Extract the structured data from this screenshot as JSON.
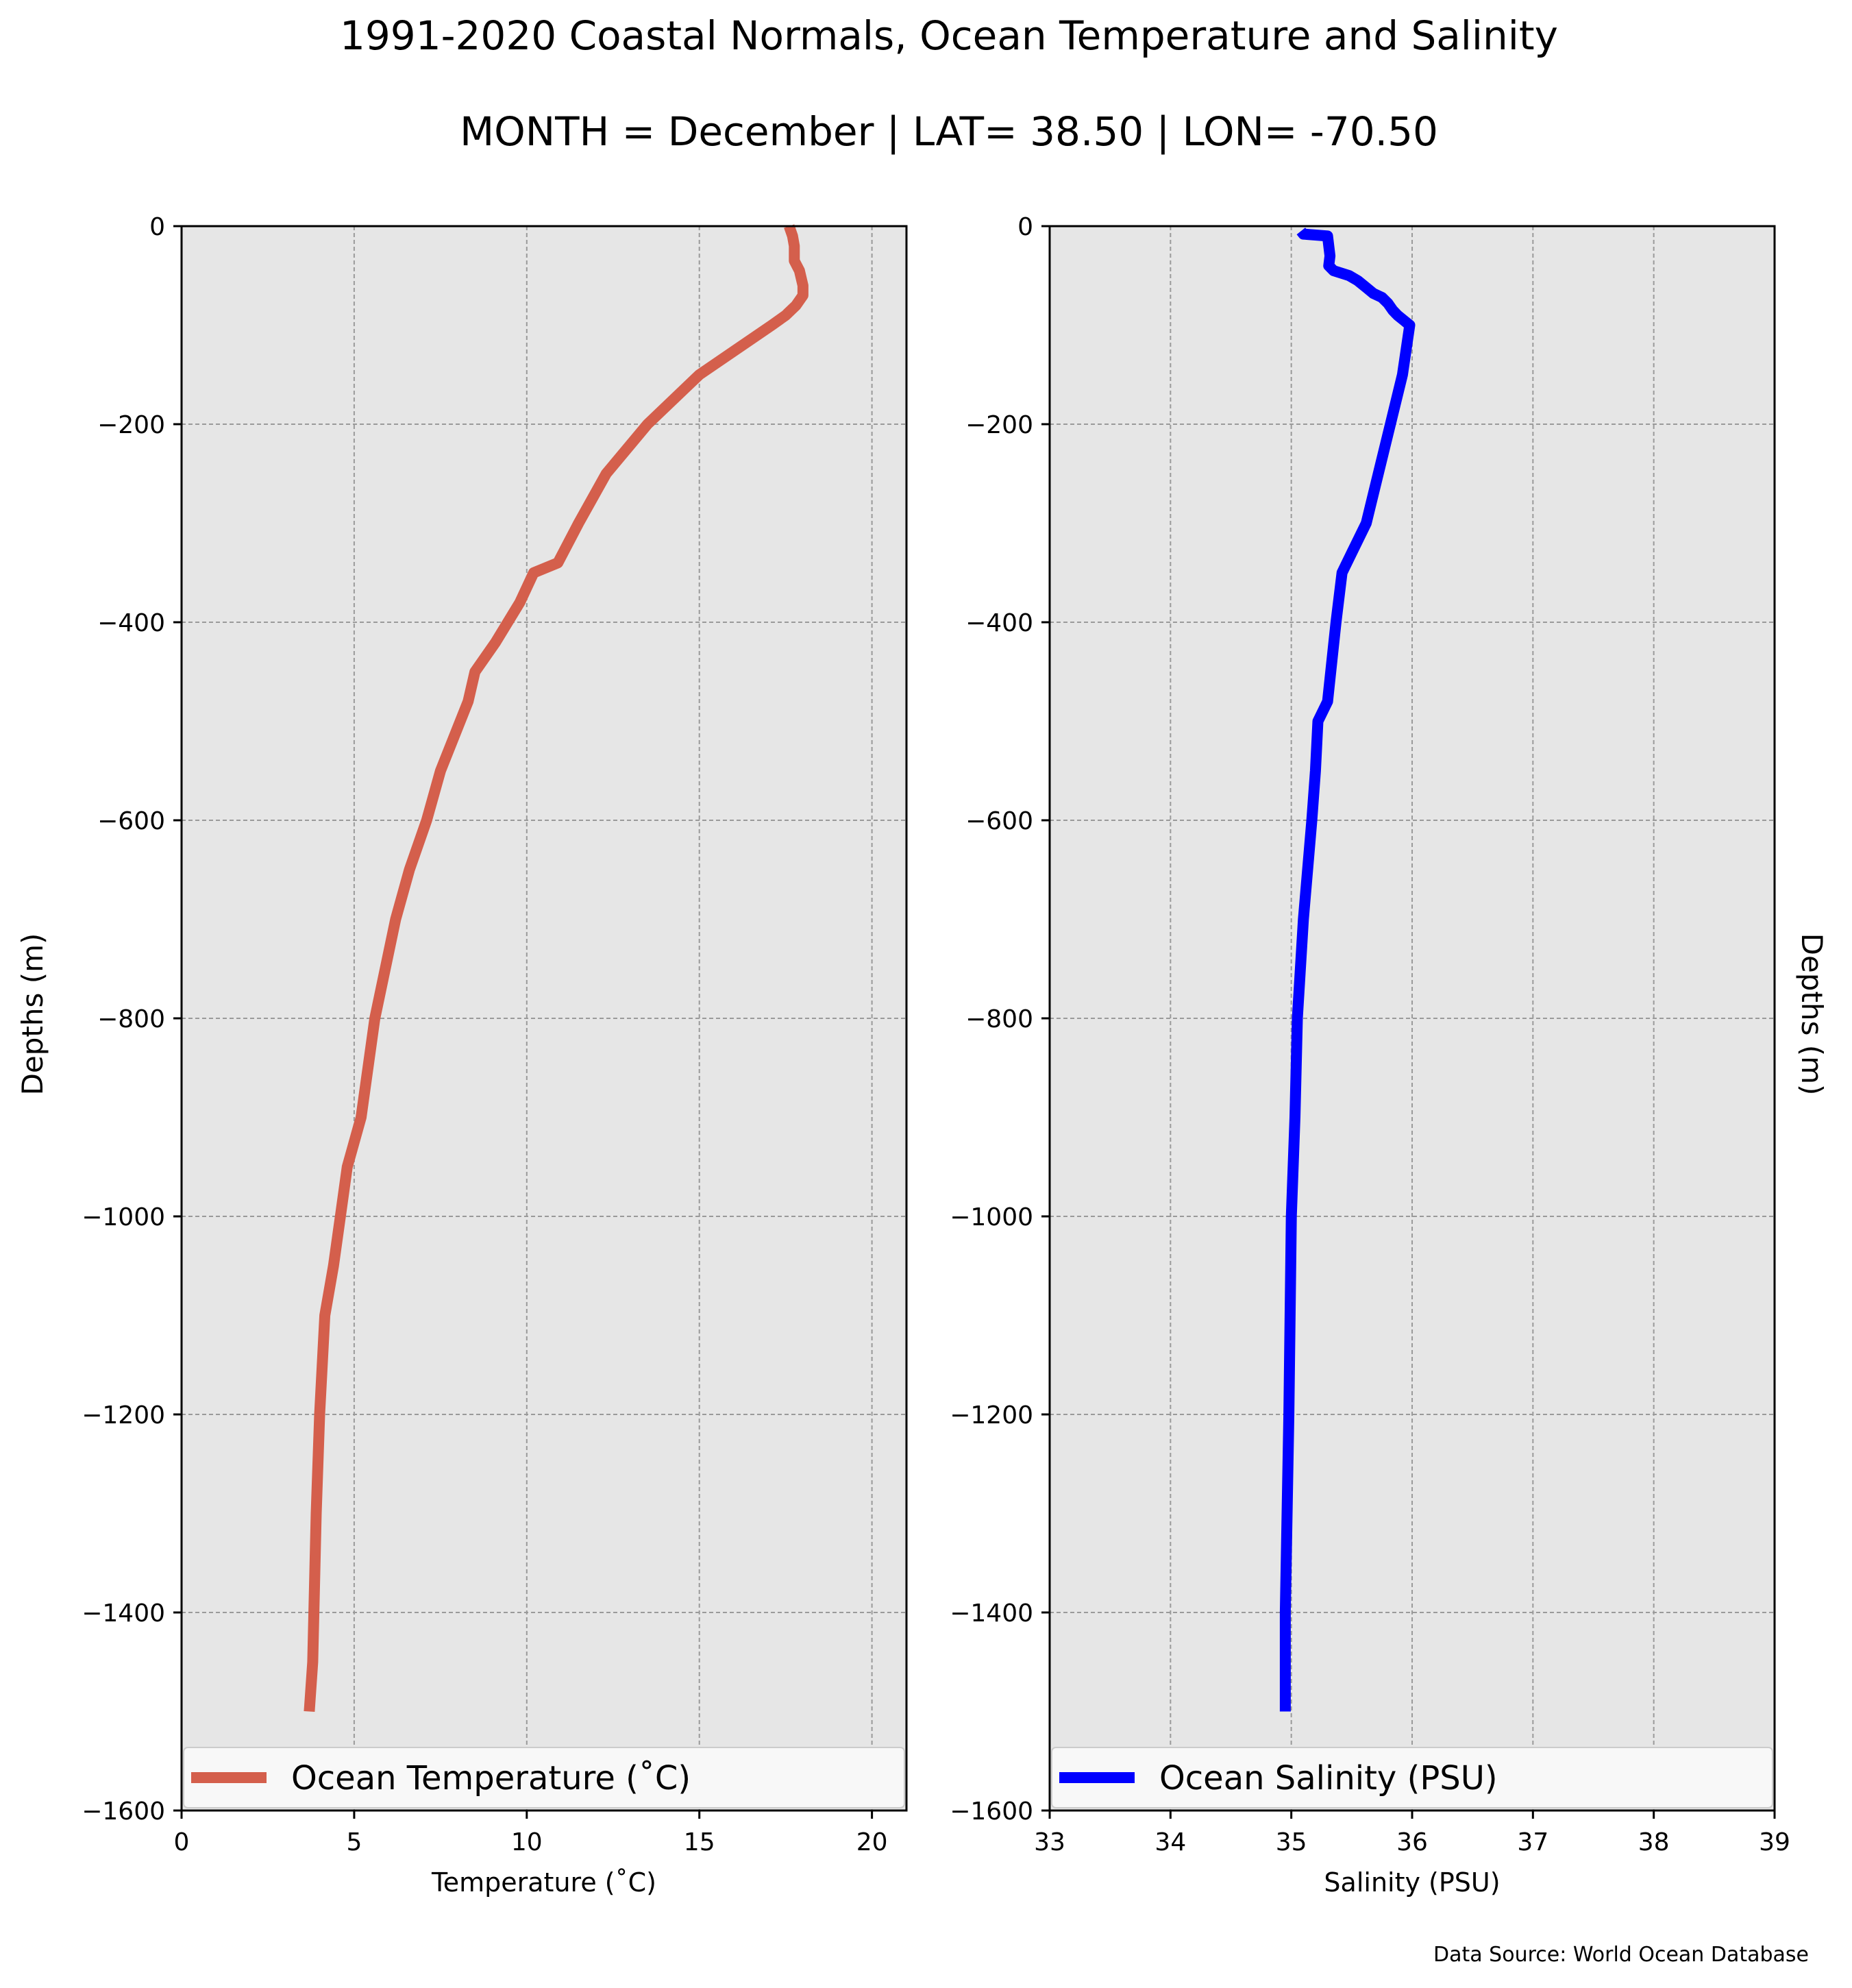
{
  "figure": {
    "title": "1991-2020 Coastal Normals, Ocean Temperature and Salinity",
    "subtitle": "MONTH = December | LAT= 38.50 | LON= -70.50",
    "source": "Data Source: World Ocean Database"
  },
  "chart_data": [
    {
      "type": "line",
      "xlabel": "Temperature ($^\\circ$C)",
      "xlabel_display": "Temperature (˚C)",
      "ylabel": "Depths (m)",
      "xlim": [
        0,
        21
      ],
      "ylim": [
        -1600,
        0
      ],
      "xticks": [
        0,
        5,
        10,
        15,
        20
      ],
      "yticks": [
        0,
        -200,
        -400,
        -600,
        -800,
        -1000,
        -1200,
        -1400,
        -1600
      ],
      "grid": true,
      "legend_position": "bottom",
      "background": "#e6e6e6",
      "series": [
        {
          "name": "Ocean Temperature ($^\\circ$C)",
          "label_display": "Ocean Temperature (˚C)",
          "color": "#d45f4c",
          "x": [
            17.6,
            17.7,
            17.75,
            17.75,
            17.9,
            18.0,
            18.0,
            17.8,
            17.5,
            17.1,
            15.0,
            13.5,
            12.3,
            11.5,
            10.9,
            10.2,
            9.8,
            9.1,
            8.5,
            8.3,
            7.5,
            7.1,
            6.6,
            6.2,
            5.6,
            5.2,
            4.8,
            4.6,
            4.4,
            4.15,
            4.0,
            3.9,
            3.8,
            3.7
          ],
          "y": [
            0,
            -10,
            -20,
            -35,
            -45,
            -60,
            -70,
            -80,
            -90,
            -100,
            -150,
            -200,
            -250,
            -300,
            -340,
            -350,
            -380,
            -420,
            -450,
            -480,
            -550,
            -600,
            -650,
            -700,
            -800,
            -900,
            -950,
            -1000,
            -1050,
            -1100,
            -1200,
            -1300,
            -1450,
            -1500
          ]
        }
      ]
    },
    {
      "type": "line",
      "xlabel": "Salinity (PSU)",
      "ylabel": "Depths (m)",
      "xlim": [
        33,
        39
      ],
      "ylim": [
        -1600,
        0
      ],
      "xticks": [
        33,
        34,
        35,
        36,
        37,
        38,
        39
      ],
      "yticks": [
        0,
        -200,
        -400,
        -600,
        -800,
        -1000,
        -1200,
        -1400,
        -1600
      ],
      "grid": true,
      "legend_position": "bottom",
      "background": "#e6e6e6",
      "series": [
        {
          "name": "Ocean Salinity (PSU)",
          "color": "#0000ff",
          "x": [
            35.08,
            35.1,
            35.3,
            35.32,
            35.31,
            35.35,
            35.48,
            35.55,
            35.62,
            35.68,
            35.75,
            35.8,
            35.84,
            35.88,
            35.93,
            35.98,
            35.92,
            35.82,
            35.72,
            35.62,
            35.5,
            35.42,
            35.37,
            35.3,
            35.22,
            35.2,
            35.17,
            35.1,
            35.05,
            35.03,
            35.0,
            34.98,
            34.95,
            34.95
          ],
          "y": [
            -5,
            -8,
            -10,
            -30,
            -40,
            -45,
            -50,
            -55,
            -62,
            -68,
            -72,
            -78,
            -85,
            -90,
            -95,
            -100,
            -150,
            -200,
            -250,
            -300,
            -330,
            -350,
            -400,
            -480,
            -500,
            -550,
            -600,
            -700,
            -800,
            -900,
            -1000,
            -1200,
            -1400,
            -1500
          ]
        }
      ]
    }
  ]
}
